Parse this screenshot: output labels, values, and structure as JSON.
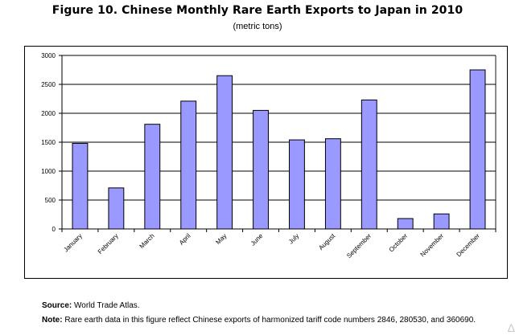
{
  "chart_data": {
    "type": "bar",
    "title": "Figure 10. Chinese Monthly Rare Earth Exports to Japan in 2010",
    "subtitle": "(metric tons)",
    "xlabel": "",
    "ylabel": "",
    "categories": [
      "January",
      "February",
      "March",
      "April",
      "May",
      "June",
      "July",
      "August",
      "September",
      "October",
      "November",
      "December"
    ],
    "values": [
      1480,
      710,
      1810,
      2210,
      2650,
      2050,
      1540,
      1560,
      2230,
      180,
      260,
      2750
    ],
    "ylim": [
      0,
      3000
    ],
    "yticks": [
      0,
      500,
      1000,
      1500,
      2000,
      2500,
      3000
    ],
    "grid": true,
    "bar_color": "#9999ff"
  },
  "footer": {
    "source_label": "Source:",
    "source_text": "World Trade Atlas.",
    "note_label": "Note:",
    "note_text": "Rare earth data in this figure reflect Chinese exports of harmonized tariff code numbers 2846, 280530, and 360690."
  },
  "watermark": "Δ"
}
